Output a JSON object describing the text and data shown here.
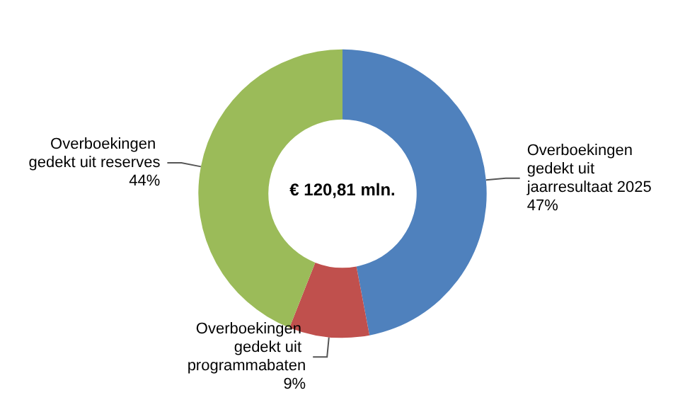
{
  "chart_data": {
    "type": "donut",
    "categories": [
      "Overboekingen gedekt uit jaarresultaat 2025",
      "Overboekingen gedekt uit programmabaten",
      "Overboekingen gedekt uit reserves"
    ],
    "values": [
      47,
      9,
      44
    ],
    "colors": [
      "#4f81bd",
      "#c0504d",
      "#9bbb59"
    ],
    "value_labels": [
      "47%",
      "9%",
      "44%"
    ],
    "annotations": [
      "€ 120,81 mln."
    ],
    "legend": false
  }
}
